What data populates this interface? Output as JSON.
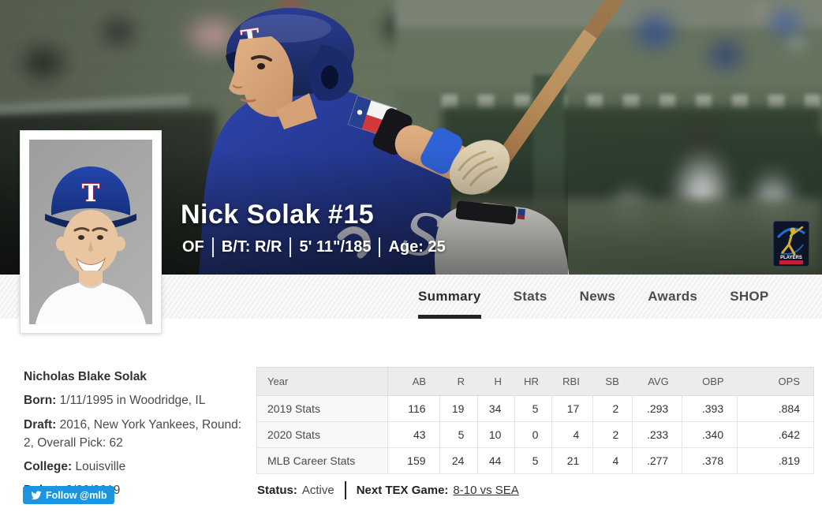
{
  "hero": {
    "player_name": "Nick Solak #15",
    "meta_items": [
      "OF",
      "B/T: R/R",
      "5' 11\"/185",
      "Age: 25"
    ],
    "badge_label": "PLAYERS"
  },
  "tabs": [
    {
      "label": "Summary",
      "active": true
    },
    {
      "label": "Stats",
      "active": false
    },
    {
      "label": "News",
      "active": false
    },
    {
      "label": "Awards",
      "active": false
    },
    {
      "label": "SHOP",
      "active": false
    }
  ],
  "bio": {
    "full_name": "Nicholas Blake Solak",
    "born_label": "Born:",
    "born_value": "1/11/1995 in Woodridge, IL",
    "draft_label": "Draft:",
    "draft_value": "2016, New York Yankees, Round: 2, Overall Pick: 62",
    "college_label": "College:",
    "college_value": "Louisville",
    "debut_label": "Debut:",
    "debut_value": "8/20/2019",
    "follow_button": "Follow @mlb"
  },
  "stats_table": {
    "columns": [
      "Year",
      "AB",
      "R",
      "H",
      "HR",
      "RBI",
      "SB",
      "AVG",
      "OBP",
      "OPS"
    ],
    "rows": [
      {
        "year": "2019 Stats",
        "values": [
          "116",
          "19",
          "34",
          "5",
          "17",
          "2",
          ".293",
          ".393",
          ".884"
        ]
      },
      {
        "year": "2020 Stats",
        "values": [
          "43",
          "5",
          "10",
          "0",
          "4",
          "2",
          ".233",
          ".340",
          ".642"
        ]
      },
      {
        "year": "MLB Career Stats",
        "values": [
          "159",
          "24",
          "44",
          "5",
          "21",
          "4",
          ".277",
          ".378",
          ".819"
        ]
      }
    ]
  },
  "status": {
    "status_label": "Status:",
    "status_value": "Active",
    "next_game_label": "Next TEX Game:",
    "next_game_value": "8-10 vs SEA"
  },
  "colors": {
    "twitter_blue": "#1b95e0",
    "tab_underline": "#232323",
    "table_header_bg": "#ececec",
    "table_border": "#dddddd",
    "jersey_blue": "#2b3f9e",
    "tabbar_bg": "#f2f2f2"
  }
}
